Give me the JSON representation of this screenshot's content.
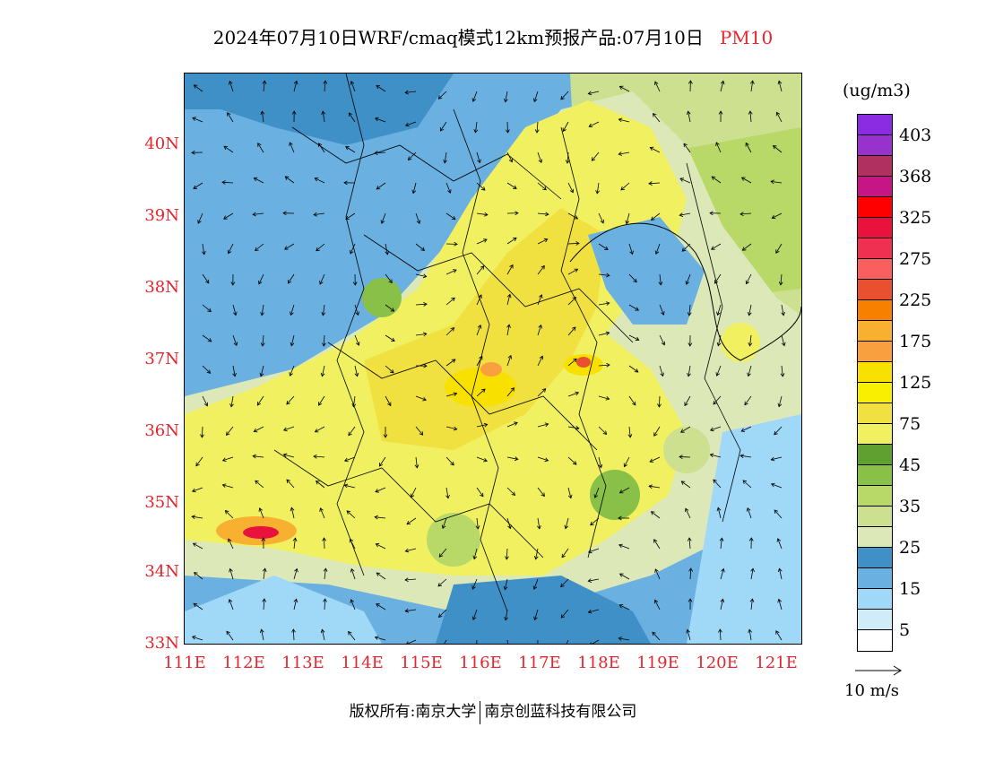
{
  "title": {
    "main": "2024年07月10日WRF/cmaq模式12km预报产品:07月10日",
    "pollutant": "PM10",
    "pollutant_color": "#e8242c"
  },
  "map": {
    "lat_labels": [
      "40N",
      "39N",
      "38N",
      "37N",
      "36N",
      "35N",
      "34N",
      "33N"
    ],
    "lon_labels": [
      "111E",
      "112E",
      "113E",
      "114E",
      "115E",
      "116E",
      "117E",
      "118E",
      "119E",
      "120E",
      "121E"
    ],
    "label_color": "#e8242c",
    "lat_range": [
      33,
      41
    ],
    "lon_range": [
      111,
      121.4
    ]
  },
  "legend": {
    "unit": "(ug/m3)",
    "labels": [
      "403",
      "368",
      "325",
      "275",
      "225",
      "175",
      "125",
      "75",
      "45",
      "35",
      "25",
      "15",
      "5"
    ],
    "colors": [
      "#8b2be2",
      "#9932cc",
      "#b03060",
      "#c71585",
      "#ff0000",
      "#e8123c",
      "#f03050",
      "#f86060",
      "#e85030",
      "#f88000",
      "#f8b030",
      "#f8a040",
      "#f8e000",
      "#f8f000",
      "#f0e040",
      "#f0f060",
      "#60a030",
      "#88c048",
      "#b8d868",
      "#cce090",
      "#dde8b8",
      "#4090c8",
      "#6ab0e0",
      "#a0d8f8",
      "#d0ecf8",
      "#ffffff"
    ]
  },
  "wind_reference": {
    "label": "10 m/s"
  },
  "footer": {
    "left": "版权所有:南京大学",
    "right": "南京创蓝科技有限公司"
  }
}
